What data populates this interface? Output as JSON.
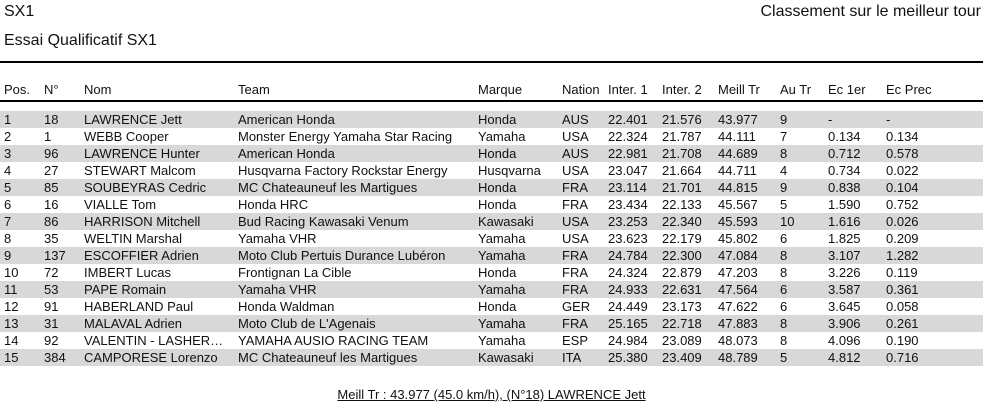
{
  "page": {
    "title": "SX1",
    "classification_title": "Classement sur le meilleur tour",
    "subtitle": "Essai Qualificatif SX1"
  },
  "colors": {
    "row_alternate": "#d8d8d8",
    "rule": "#000000",
    "text": "#111111"
  },
  "table": {
    "columns": [
      {
        "key": "pos",
        "label": "Pos."
      },
      {
        "key": "num",
        "label": "N°"
      },
      {
        "key": "nom",
        "label": "Nom"
      },
      {
        "key": "team",
        "label": "Team"
      },
      {
        "key": "marque",
        "label": "Marque"
      },
      {
        "key": "nation",
        "label": "Nation"
      },
      {
        "key": "inter1",
        "label": "Inter. 1"
      },
      {
        "key": "inter2",
        "label": "Inter. 2"
      },
      {
        "key": "meill_tr",
        "label": "Meill Tr"
      },
      {
        "key": "au_tr",
        "label": "Au Tr"
      },
      {
        "key": "ec_1er",
        "label": "Ec 1er"
      },
      {
        "key": "ec_prec",
        "label": "Ec Prec"
      }
    ],
    "rows": [
      {
        "pos": "1",
        "num": "18",
        "nom": "LAWRENCE Jett",
        "team": "American Honda",
        "marque": "Honda",
        "nation": "AUS",
        "inter1": "22.401",
        "inter2": "21.576",
        "meill_tr": "43.977",
        "au_tr": "9",
        "ec_1er": "-",
        "ec_prec": "-"
      },
      {
        "pos": "2",
        "num": "1",
        "nom": "WEBB Cooper",
        "team": "Monster Energy Yamaha Star Racing",
        "marque": "Yamaha",
        "nation": "USA",
        "inter1": "22.324",
        "inter2": "21.787",
        "meill_tr": "44.111",
        "au_tr": "7",
        "ec_1er": "0.134",
        "ec_prec": "0.134"
      },
      {
        "pos": "3",
        "num": "96",
        "nom": "LAWRENCE Hunter",
        "team": "American Honda",
        "marque": "Honda",
        "nation": "AUS",
        "inter1": "22.981",
        "inter2": "21.708",
        "meill_tr": "44.689",
        "au_tr": "8",
        "ec_1er": "0.712",
        "ec_prec": "0.578"
      },
      {
        "pos": "4",
        "num": "27",
        "nom": "STEWART Malcom",
        "team": "Husqvarna Factory Rockstar Energy",
        "marque": "Husqvarna",
        "nation": "USA",
        "inter1": "23.047",
        "inter2": "21.664",
        "meill_tr": "44.711",
        "au_tr": "4",
        "ec_1er": "0.734",
        "ec_prec": "0.022"
      },
      {
        "pos": "5",
        "num": "85",
        "nom": "SOUBEYRAS Cedric",
        "team": "MC Chateauneuf les Martigues",
        "marque": "Honda",
        "nation": "FRA",
        "inter1": "23.114",
        "inter2": "21.701",
        "meill_tr": "44.815",
        "au_tr": "9",
        "ec_1er": "0.838",
        "ec_prec": "0.104"
      },
      {
        "pos": "6",
        "num": "16",
        "nom": "VIALLE Tom",
        "team": "Honda HRC",
        "marque": "Honda",
        "nation": "FRA",
        "inter1": "23.434",
        "inter2": "22.133",
        "meill_tr": "45.567",
        "au_tr": "5",
        "ec_1er": "1.590",
        "ec_prec": "0.752"
      },
      {
        "pos": "7",
        "num": "86",
        "nom": "HARRISON Mitchell",
        "team": "Bud Racing Kawasaki Venum",
        "marque": "Kawasaki",
        "nation": "USA",
        "inter1": "23.253",
        "inter2": "22.340",
        "meill_tr": "45.593",
        "au_tr": "10",
        "ec_1er": "1.616",
        "ec_prec": "0.026"
      },
      {
        "pos": "8",
        "num": "35",
        "nom": "WELTIN Marshal",
        "team": "Yamaha VHR",
        "marque": "Yamaha",
        "nation": "USA",
        "inter1": "23.623",
        "inter2": "22.179",
        "meill_tr": "45.802",
        "au_tr": "6",
        "ec_1er": "1.825",
        "ec_prec": "0.209"
      },
      {
        "pos": "9",
        "num": "137",
        "nom": "ESCOFFIER Adrien",
        "team": "Moto Club Pertuis Durance Lubéron",
        "marque": "Yamaha",
        "nation": "FRA",
        "inter1": "24.784",
        "inter2": "22.300",
        "meill_tr": "47.084",
        "au_tr": "8",
        "ec_1er": "3.107",
        "ec_prec": "1.282"
      },
      {
        "pos": "10",
        "num": "72",
        "nom": "IMBERT Lucas",
        "team": "Frontignan La Cible",
        "marque": "Honda",
        "nation": "FRA",
        "inter1": "24.324",
        "inter2": "22.879",
        "meill_tr": "47.203",
        "au_tr": "8",
        "ec_1er": "3.226",
        "ec_prec": "0.119"
      },
      {
        "pos": "11",
        "num": "53",
        "nom": "PAPE Romain",
        "team": "Yamaha VHR",
        "marque": "Yamaha",
        "nation": "FRA",
        "inter1": "24.933",
        "inter2": "22.631",
        "meill_tr": "47.564",
        "au_tr": "6",
        "ec_1er": "3.587",
        "ec_prec": "0.361"
      },
      {
        "pos": "12",
        "num": "91",
        "nom": "HABERLAND Paul",
        "team": "Honda Waldman",
        "marque": "Honda",
        "nation": "GER",
        "inter1": "24.449",
        "inter2": "23.173",
        "meill_tr": "47.622",
        "au_tr": "6",
        "ec_1er": "3.645",
        "ec_prec": "0.058"
      },
      {
        "pos": "13",
        "num": "31",
        "nom": "MALAVAL Adrien",
        "team": "Moto Club de L'Agenais",
        "marque": "Yamaha",
        "nation": "FRA",
        "inter1": "25.165",
        "inter2": "22.718",
        "meill_tr": "47.883",
        "au_tr": "8",
        "ec_1er": "3.906",
        "ec_prec": "0.261"
      },
      {
        "pos": "14",
        "num": "92",
        "nom": "VALENTIN - LASHER…",
        "team": "YAMAHA AUSIO RACING TEAM",
        "marque": "Yamaha",
        "nation": "ESP",
        "inter1": "24.984",
        "inter2": "23.089",
        "meill_tr": "48.073",
        "au_tr": "8",
        "ec_1er": "4.096",
        "ec_prec": "0.190"
      },
      {
        "pos": "15",
        "num": "384",
        "nom": "CAMPORESE Lorenzo",
        "team": "MC Chateauneuf les Martigues",
        "marque": "Kawasaki",
        "nation": "ITA",
        "inter1": "25.380",
        "inter2": "23.409",
        "meill_tr": "48.789",
        "au_tr": "5",
        "ec_1er": "4.812",
        "ec_prec": "0.716"
      }
    ]
  },
  "footer": {
    "best_lap_summary": "Meill Tr : 43.977 (45.0 km/h), (N°18) LAWRENCE Jett"
  }
}
